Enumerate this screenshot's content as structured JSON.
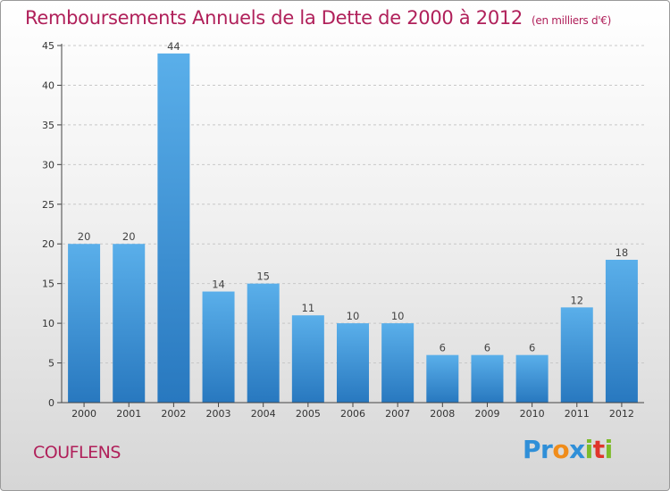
{
  "title": "Remboursements Annuels de la Dette de 2000 à 2012",
  "unit": "(en milliers d'€)",
  "commune": "COUFLENS",
  "logo": {
    "letters": [
      {
        "ch": "P",
        "color": "#2f8fd8"
      },
      {
        "ch": "r",
        "color": "#2f8fd8"
      },
      {
        "ch": "o",
        "color": "#f08c1a"
      },
      {
        "ch": "x",
        "color": "#2f8fd8"
      },
      {
        "ch": "i",
        "color": "#7dbb2a"
      },
      {
        "ch": "t",
        "color": "#e0352b"
      },
      {
        "ch": "i",
        "color": "#7dbb2a"
      }
    ]
  },
  "chart_data": {
    "type": "bar",
    "categories": [
      "2000",
      "2001",
      "2002",
      "2003",
      "2004",
      "2005",
      "2006",
      "2007",
      "2008",
      "2009",
      "2010",
      "2011",
      "2012"
    ],
    "values": [
      20,
      20,
      44,
      14,
      15,
      11,
      10,
      10,
      6,
      6,
      6,
      12,
      18
    ],
    "yticks": [
      0,
      5,
      10,
      15,
      20,
      25,
      30,
      35,
      40,
      45
    ],
    "ylim": [
      0,
      45
    ],
    "grid": "horizontal dashed",
    "bar_color": "#3a93d8"
  }
}
